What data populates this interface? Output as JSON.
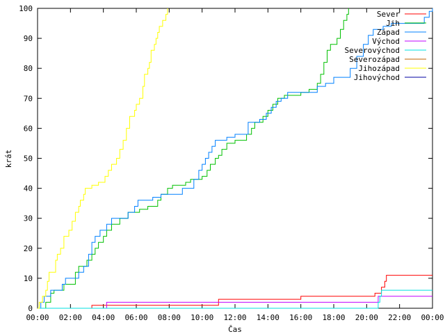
{
  "chart_data": {
    "type": "line",
    "xlabel": "Čas",
    "ylabel": "krát",
    "xlim": [
      0,
      24
    ],
    "ylim": [
      0,
      100
    ],
    "x_ticks": [
      "00:00",
      "02:00",
      "04:00",
      "06:00",
      "08:00",
      "10:00",
      "12:00",
      "14:00",
      "16:00",
      "18:00",
      "20:00",
      "22:00",
      "00:00"
    ],
    "y_ticks": [
      "0",
      "10",
      "20",
      "30",
      "40",
      "50",
      "60",
      "70",
      "80",
      "90",
      "100"
    ],
    "legend_position": "top-right",
    "grid": false,
    "series": [
      {
        "name": "Sever",
        "color": "#ff0000",
        "step": true,
        "points": [
          [
            0,
            0
          ],
          [
            3.3,
            0
          ],
          [
            3.3,
            1
          ],
          [
            11,
            1
          ],
          [
            11,
            3
          ],
          [
            16,
            3
          ],
          [
            16,
            4
          ],
          [
            20.5,
            4
          ],
          [
            20.5,
            5
          ],
          [
            20.9,
            5
          ],
          [
            20.9,
            7
          ],
          [
            21.1,
            7
          ],
          [
            21.1,
            9
          ],
          [
            21.2,
            9
          ],
          [
            21.2,
            11
          ],
          [
            24,
            11
          ]
        ]
      },
      {
        "name": "Jih",
        "color": "#00c000",
        "step": true,
        "points": [
          [
            0,
            0
          ],
          [
            0.5,
            0
          ],
          [
            0.5,
            2
          ],
          [
            0.8,
            2
          ],
          [
            0.8,
            5
          ],
          [
            1,
            5
          ],
          [
            1,
            6
          ],
          [
            1.6,
            6
          ],
          [
            1.6,
            8
          ],
          [
            2.3,
            8
          ],
          [
            2.3,
            12
          ],
          [
            2.5,
            12
          ],
          [
            2.5,
            14
          ],
          [
            3,
            14
          ],
          [
            3,
            16
          ],
          [
            3.3,
            16
          ],
          [
            3.3,
            18
          ],
          [
            3.5,
            18
          ],
          [
            3.5,
            20
          ],
          [
            3.7,
            20
          ],
          [
            3.7,
            22
          ],
          [
            4,
            22
          ],
          [
            4,
            24
          ],
          [
            4.2,
            24
          ],
          [
            4.2,
            26
          ],
          [
            4.5,
            26
          ],
          [
            4.5,
            28
          ],
          [
            5,
            28
          ],
          [
            5,
            30
          ],
          [
            5.5,
            30
          ],
          [
            5.5,
            32
          ],
          [
            6.2,
            32
          ],
          [
            6.2,
            33
          ],
          [
            6.7,
            33
          ],
          [
            6.7,
            34
          ],
          [
            7.3,
            34
          ],
          [
            7.3,
            36
          ],
          [
            7.5,
            36
          ],
          [
            7.5,
            38
          ],
          [
            7.9,
            38
          ],
          [
            7.9,
            40
          ],
          [
            8.2,
            40
          ],
          [
            8.2,
            41
          ],
          [
            9,
            41
          ],
          [
            9,
            42
          ],
          [
            9.3,
            42
          ],
          [
            9.3,
            43
          ],
          [
            10,
            43
          ],
          [
            10,
            44
          ],
          [
            10.3,
            44
          ],
          [
            10.3,
            46
          ],
          [
            10.5,
            46
          ],
          [
            10.5,
            48
          ],
          [
            10.8,
            48
          ],
          [
            10.8,
            50
          ],
          [
            11,
            50
          ],
          [
            11,
            51
          ],
          [
            11.2,
            51
          ],
          [
            11.2,
            53
          ],
          [
            11.5,
            53
          ],
          [
            11.5,
            55
          ],
          [
            12,
            55
          ],
          [
            12,
            56
          ],
          [
            12.7,
            56
          ],
          [
            12.7,
            58
          ],
          [
            13,
            58
          ],
          [
            13,
            60
          ],
          [
            13.2,
            60
          ],
          [
            13.2,
            62
          ],
          [
            13.7,
            62
          ],
          [
            13.7,
            64
          ],
          [
            14,
            64
          ],
          [
            14,
            66
          ],
          [
            14.3,
            66
          ],
          [
            14.3,
            68
          ],
          [
            14.6,
            68
          ],
          [
            14.6,
            70
          ],
          [
            15,
            70
          ],
          [
            15,
            71
          ],
          [
            16,
            71
          ],
          [
            16,
            72
          ],
          [
            16.5,
            72
          ],
          [
            16.5,
            73
          ],
          [
            17,
            73
          ],
          [
            17,
            75
          ],
          [
            17.2,
            75
          ],
          [
            17.2,
            78
          ],
          [
            17.4,
            78
          ],
          [
            17.4,
            82
          ],
          [
            17.6,
            82
          ],
          [
            17.6,
            86
          ],
          [
            17.8,
            86
          ],
          [
            17.8,
            88
          ],
          [
            18.2,
            88
          ],
          [
            18.2,
            90
          ],
          [
            18.4,
            90
          ],
          [
            18.4,
            93
          ],
          [
            18.6,
            93
          ],
          [
            18.6,
            96
          ],
          [
            18.8,
            96
          ],
          [
            18.8,
            98
          ],
          [
            18.9,
            98
          ],
          [
            18.9,
            100
          ]
        ]
      },
      {
        "name": "Západ",
        "color": "#0080ff",
        "step": true,
        "points": [
          [
            0,
            0
          ],
          [
            0.2,
            0
          ],
          [
            0.2,
            2
          ],
          [
            0.4,
            2
          ],
          [
            0.4,
            4
          ],
          [
            0.8,
            4
          ],
          [
            0.8,
            6
          ],
          [
            1.5,
            6
          ],
          [
            1.5,
            8
          ],
          [
            1.7,
            8
          ],
          [
            1.7,
            10
          ],
          [
            2.5,
            10
          ],
          [
            2.5,
            12
          ],
          [
            2.8,
            12
          ],
          [
            2.8,
            14
          ],
          [
            3.1,
            14
          ],
          [
            3.1,
            18
          ],
          [
            3.3,
            18
          ],
          [
            3.3,
            22
          ],
          [
            3.5,
            22
          ],
          [
            3.5,
            24
          ],
          [
            3.8,
            24
          ],
          [
            3.8,
            26
          ],
          [
            4.2,
            26
          ],
          [
            4.2,
            28
          ],
          [
            4.5,
            28
          ],
          [
            4.5,
            30
          ],
          [
            5.5,
            30
          ],
          [
            5.5,
            32
          ],
          [
            5.9,
            32
          ],
          [
            5.9,
            34
          ],
          [
            6.1,
            34
          ],
          [
            6.1,
            36
          ],
          [
            7,
            36
          ],
          [
            7,
            37
          ],
          [
            7.5,
            37
          ],
          [
            7.5,
            38
          ],
          [
            8.8,
            38
          ],
          [
            8.8,
            40
          ],
          [
            9.5,
            40
          ],
          [
            9.5,
            43
          ],
          [
            9.8,
            43
          ],
          [
            9.8,
            46
          ],
          [
            10,
            46
          ],
          [
            10,
            48
          ],
          [
            10.2,
            48
          ],
          [
            10.2,
            50
          ],
          [
            10.4,
            50
          ],
          [
            10.4,
            52
          ],
          [
            10.6,
            52
          ],
          [
            10.6,
            54
          ],
          [
            10.8,
            54
          ],
          [
            10.8,
            56
          ],
          [
            11.5,
            56
          ],
          [
            11.5,
            57
          ],
          [
            12,
            57
          ],
          [
            12,
            58
          ],
          [
            12.8,
            58
          ],
          [
            12.8,
            62
          ],
          [
            13.5,
            62
          ],
          [
            13.5,
            63
          ],
          [
            13.9,
            63
          ],
          [
            13.9,
            65
          ],
          [
            14.2,
            65
          ],
          [
            14.2,
            67
          ],
          [
            14.5,
            67
          ],
          [
            14.5,
            69
          ],
          [
            14.8,
            69
          ],
          [
            14.8,
            70
          ],
          [
            15.2,
            70
          ],
          [
            15.2,
            72
          ],
          [
            17,
            72
          ],
          [
            17,
            74
          ],
          [
            17.5,
            74
          ],
          [
            17.5,
            75
          ],
          [
            18,
            75
          ],
          [
            18,
            77
          ],
          [
            19,
            77
          ],
          [
            19,
            80
          ],
          [
            19.4,
            80
          ],
          [
            19.4,
            84
          ],
          [
            19.8,
            84
          ],
          [
            19.8,
            88
          ],
          [
            20.1,
            88
          ],
          [
            20.1,
            91
          ],
          [
            20.4,
            91
          ],
          [
            20.4,
            93
          ],
          [
            21,
            93
          ],
          [
            21,
            94
          ],
          [
            21.5,
            94
          ],
          [
            21.5,
            95
          ],
          [
            23.5,
            95
          ],
          [
            23.5,
            97
          ],
          [
            23.8,
            97
          ],
          [
            23.8,
            99
          ],
          [
            24,
            99
          ],
          [
            24,
            100
          ]
        ]
      },
      {
        "name": "Východ",
        "color": "#c000ff",
        "step": true,
        "points": [
          [
            0,
            0
          ],
          [
            4.2,
            0
          ],
          [
            4.2,
            2
          ],
          [
            20.7,
            2
          ],
          [
            20.7,
            4
          ],
          [
            24,
            4
          ]
        ]
      },
      {
        "name": "Severovýchod",
        "color": "#00e0e0",
        "step": true,
        "points": [
          [
            0,
            0
          ],
          [
            20.7,
            0
          ],
          [
            20.7,
            2
          ],
          [
            20.8,
            2
          ],
          [
            20.8,
            4
          ],
          [
            20.9,
            4
          ],
          [
            20.9,
            6
          ],
          [
            24,
            6
          ]
        ]
      },
      {
        "name": "Severozápad",
        "color": "#c06000",
        "step": true,
        "points": []
      },
      {
        "name": "Jihozápad",
        "color": "#ffff00",
        "step": true,
        "points": [
          [
            0,
            0
          ],
          [
            0.1,
            0
          ],
          [
            0.1,
            2
          ],
          [
            0.3,
            2
          ],
          [
            0.3,
            4
          ],
          [
            0.5,
            4
          ],
          [
            0.5,
            6
          ],
          [
            0.6,
            6
          ],
          [
            0.6,
            9
          ],
          [
            0.7,
            9
          ],
          [
            0.7,
            12
          ],
          [
            1.1,
            12
          ],
          [
            1.1,
            16
          ],
          [
            1.2,
            16
          ],
          [
            1.2,
            18
          ],
          [
            1.4,
            18
          ],
          [
            1.4,
            20
          ],
          [
            1.6,
            20
          ],
          [
            1.6,
            24
          ],
          [
            1.9,
            24
          ],
          [
            1.9,
            26
          ],
          [
            2.1,
            26
          ],
          [
            2.1,
            29
          ],
          [
            2.3,
            29
          ],
          [
            2.3,
            32
          ],
          [
            2.5,
            32
          ],
          [
            2.5,
            34
          ],
          [
            2.6,
            34
          ],
          [
            2.6,
            36
          ],
          [
            2.8,
            36
          ],
          [
            2.8,
            38
          ],
          [
            2.9,
            38
          ],
          [
            2.9,
            40
          ],
          [
            3.3,
            40
          ],
          [
            3.3,
            41
          ],
          [
            3.7,
            41
          ],
          [
            3.7,
            42
          ],
          [
            4.1,
            42
          ],
          [
            4.1,
            44
          ],
          [
            4.3,
            44
          ],
          [
            4.3,
            46
          ],
          [
            4.5,
            46
          ],
          [
            4.5,
            48
          ],
          [
            4.8,
            48
          ],
          [
            4.8,
            50
          ],
          [
            5,
            50
          ],
          [
            5,
            53
          ],
          [
            5.2,
            53
          ],
          [
            5.2,
            56
          ],
          [
            5.4,
            56
          ],
          [
            5.4,
            60
          ],
          [
            5.6,
            60
          ],
          [
            5.6,
            64
          ],
          [
            5.9,
            64
          ],
          [
            5.9,
            66
          ],
          [
            6,
            66
          ],
          [
            6,
            68
          ],
          [
            6.2,
            68
          ],
          [
            6.2,
            70
          ],
          [
            6.4,
            70
          ],
          [
            6.4,
            74
          ],
          [
            6.5,
            74
          ],
          [
            6.5,
            78
          ],
          [
            6.7,
            78
          ],
          [
            6.7,
            80
          ],
          [
            6.8,
            80
          ],
          [
            6.8,
            82
          ],
          [
            6.9,
            82
          ],
          [
            6.9,
            86
          ],
          [
            7.1,
            86
          ],
          [
            7.1,
            88
          ],
          [
            7.2,
            88
          ],
          [
            7.2,
            90
          ],
          [
            7.3,
            90
          ],
          [
            7.3,
            92
          ],
          [
            7.4,
            92
          ],
          [
            7.4,
            94
          ],
          [
            7.6,
            94
          ],
          [
            7.6,
            96
          ],
          [
            7.8,
            96
          ],
          [
            7.8,
            98
          ],
          [
            7.9,
            98
          ],
          [
            7.9,
            100
          ]
        ]
      },
      {
        "name": "Jihovýchod",
        "color": "#0000a0",
        "step": true,
        "points": []
      }
    ]
  }
}
